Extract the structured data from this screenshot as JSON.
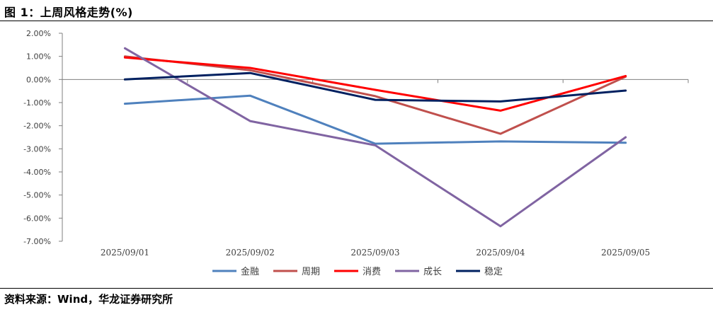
{
  "figure": {
    "title": "图 1：上周风格走势(%)",
    "source": "资料来源：Wind，华龙证券研究所"
  },
  "chart_data": {
    "type": "line",
    "title": "上周风格走势(%)",
    "x": [
      "2025/09/01",
      "2025/09/02",
      "2025/09/03",
      "2025/09/04",
      "2025/09/05"
    ],
    "ylim": [
      -7.0,
      2.0
    ],
    "yticks": [
      2.0,
      1.0,
      0.0,
      -1.0,
      -2.0,
      -3.0,
      -4.0,
      -5.0,
      -6.0,
      -7.0
    ],
    "ytick_labels": [
      "2.00%",
      "1.00%",
      "0.00%",
      "-1.00%",
      "-2.00%",
      "-3.00%",
      "-4.00%",
      "-5.00%",
      "-6.00%",
      "-7.00%"
    ],
    "legend_position": "bottom",
    "series": [
      {
        "name": "金融",
        "color": "#4f81bd",
        "values": [
          -1.05,
          -0.7,
          -2.78,
          -2.68,
          -2.74
        ]
      },
      {
        "name": "周期",
        "color": "#c0504d",
        "values": [
          1.0,
          0.4,
          -0.72,
          -2.35,
          0.12
        ]
      },
      {
        "name": "消费",
        "color": "#ff0000",
        "values": [
          0.95,
          0.5,
          -0.45,
          -1.35,
          0.15
        ]
      },
      {
        "name": "成长",
        "color": "#8064a2",
        "values": [
          1.35,
          -1.8,
          -2.85,
          -6.35,
          -2.5
        ]
      },
      {
        "name": "稳定",
        "color": "#002060",
        "values": [
          0.0,
          0.28,
          -0.88,
          -0.95,
          -0.48
        ]
      }
    ]
  }
}
